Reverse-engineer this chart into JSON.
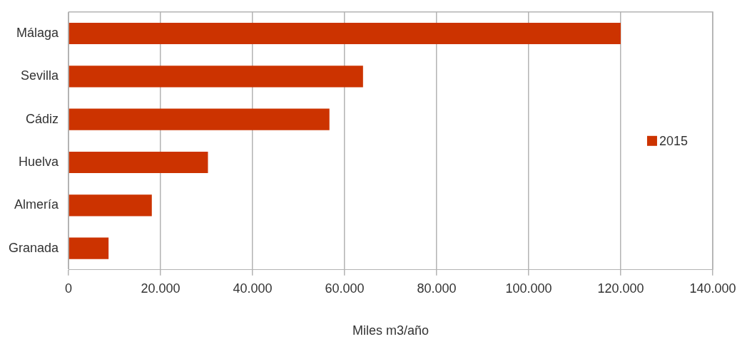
{
  "chart_data": {
    "type": "bar",
    "orientation": "horizontal",
    "xlabel": "Miles m3/año",
    "categories": [
      "Málaga",
      "Sevilla",
      "Cádiz",
      "Huelva",
      "Almería",
      "Granada"
    ],
    "series": [
      {
        "name": "2015",
        "color": "#cc3300",
        "values": [
          120000,
          64000,
          56700,
          30300,
          18100,
          8700
        ]
      }
    ],
    "xlim": [
      0,
      140000
    ],
    "xticks": [
      0,
      {
        "value": 20000,
        "label": "20.000"
      },
      {
        "value": 40000,
        "label": "40.000"
      },
      {
        "value": 60000,
        "label": "60.000"
      },
      {
        "value": 80000,
        "label": "80.000"
      },
      {
        "value": 100000,
        "label": "100.000"
      },
      {
        "value": 120000,
        "label": "120.000"
      },
      {
        "value": 140000,
        "label": "140.000"
      }
    ],
    "grid": "x",
    "legend": "right"
  }
}
